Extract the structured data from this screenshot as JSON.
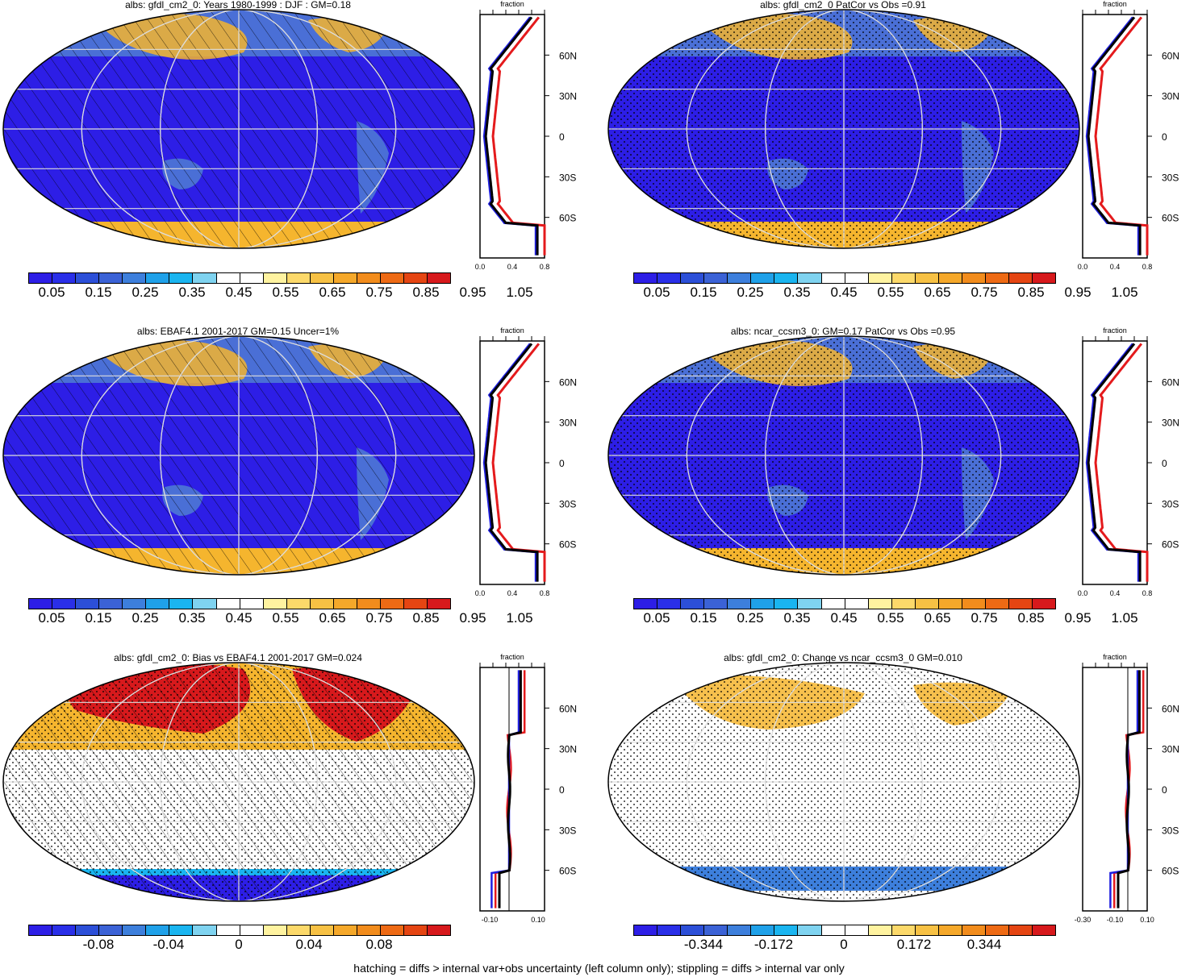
{
  "footer": "hatching = diffs > internal var+obs uncertainty (left column only); stippling = diffs > internal var only",
  "colors": {
    "ocean_low": "#2d1ee6",
    "land_blue": "#4a6fd6",
    "warm": "#f5b52e",
    "hot": "#d7191c",
    "white": "#ffffff",
    "model_line": "#000000",
    "obs_line": "#e41a1c",
    "alt_line": "#1f1fe0"
  },
  "clim_colorbar": {
    "colors": [
      "#2d1ee6",
      "#2a2fe8",
      "#2c4fd8",
      "#3b62d6",
      "#3d7fdc",
      "#1fa1e9",
      "#1ab5f0",
      "#7fd3f0",
      "#ffffff",
      "#ffffff",
      "#fff3a0",
      "#fcd96a",
      "#f7c144",
      "#f5a82a",
      "#f28c1c",
      "#ee6a14",
      "#e54512",
      "#d7191c"
    ],
    "labels": [
      "0.05",
      "0.15",
      "0.25",
      "0.35",
      "0.45",
      "0.55",
      "0.65",
      "0.75",
      "0.85",
      "0.95",
      "1.05"
    ]
  },
  "bias_colorbar": {
    "colors": [
      "#2d1ee6",
      "#2a2fe8",
      "#2c4fd8",
      "#3b62d6",
      "#3d7fdc",
      "#1fa1e9",
      "#1ab5f0",
      "#7fd3f0",
      "#ffffff",
      "#ffffff",
      "#fff3a0",
      "#fcd96a",
      "#f7c144",
      "#f5a82a",
      "#f28c1c",
      "#ee6a14",
      "#e54512",
      "#d7191c"
    ],
    "labels": [
      "-0.08",
      "-0.04",
      "0",
      "0.04",
      "0.08"
    ]
  },
  "change_colorbar": {
    "colors": [
      "#2d1ee6",
      "#2a2fe8",
      "#2c4fd8",
      "#3b62d6",
      "#3d7fdc",
      "#1fa1e9",
      "#1ab5f0",
      "#7fd3f0",
      "#ffffff",
      "#ffffff",
      "#fff3a0",
      "#fcd96a",
      "#f7c144",
      "#f5a82a",
      "#f28c1c",
      "#ee6a14",
      "#e54512",
      "#d7191c"
    ],
    "labels": [
      "-0.344",
      "-0.172",
      "0",
      "0.172",
      "0.344"
    ]
  },
  "panels": [
    {
      "id": "p1",
      "title": "albs: gfdl_cm2_0: Years 1980-1999 : DJF : GM=0.18",
      "style": "clim",
      "hatch": true,
      "stipple": false,
      "zonal": {
        "xlabel": "fraction",
        "xticks": [
          "0.0",
          "0.4",
          "0.8"
        ],
        "yticks": [
          "60N",
          "30N",
          "0",
          "30S",
          "60S"
        ],
        "kind": "clim"
      }
    },
    {
      "id": "p2",
      "title": "albs: gfdl_cm2_0 PatCor vs Obs =0.91",
      "style": "clim",
      "hatch": false,
      "stipple": true,
      "zonal": {
        "xlabel": "fraction",
        "xticks": [
          "0.0",
          "0.4",
          "0.8"
        ],
        "yticks": [
          "60N",
          "30N",
          "0",
          "30S",
          "60S"
        ],
        "kind": "clim"
      }
    },
    {
      "id": "p3",
      "title": "albs: EBAF4.1 2001-2017 GM=0.15 Uncer=1%",
      "style": "clim",
      "hatch": true,
      "stipple": false,
      "zonal": {
        "xlabel": "fraction",
        "xticks": [
          "0.0",
          "0.4",
          "0.8"
        ],
        "yticks": [
          "60N",
          "30N",
          "0",
          "30S",
          "60S"
        ],
        "kind": "clim"
      }
    },
    {
      "id": "p4",
      "title": "albs: ncar_ccsm3_0: GM=0.17 PatCor vs Obs =0.95",
      "style": "clim",
      "hatch": false,
      "stipple": true,
      "zonal": {
        "xlabel": "fraction",
        "xticks": [
          "0.0",
          "0.4",
          "0.8"
        ],
        "yticks": [
          "60N",
          "30N",
          "0",
          "30S",
          "60S"
        ],
        "kind": "clim"
      }
    },
    {
      "id": "p5",
      "title": "albs: gfdl_cm2_0: Bias vs EBAF4.1 2001-2017 GM=0.024",
      "style": "bias",
      "hatch": true,
      "stipple": true,
      "zonal": {
        "xlabel": "fraction",
        "xticks": [
          "-0.10",
          "0.10"
        ],
        "yticks": [
          "60N",
          "30N",
          "0",
          "30S",
          "60S"
        ],
        "kind": "bias"
      }
    },
    {
      "id": "p6",
      "title": "albs: gfdl_cm2_0: Change vs ncar_ccsm3_0 GM=0.010",
      "style": "change",
      "hatch": false,
      "stipple": true,
      "zonal": {
        "xlabel": "fraction",
        "xticks": [
          "-0.30",
          "-0.10",
          "0.10"
        ],
        "yticks": [
          "60N",
          "30N",
          "0",
          "30S",
          "60S"
        ],
        "kind": "change"
      }
    }
  ]
}
